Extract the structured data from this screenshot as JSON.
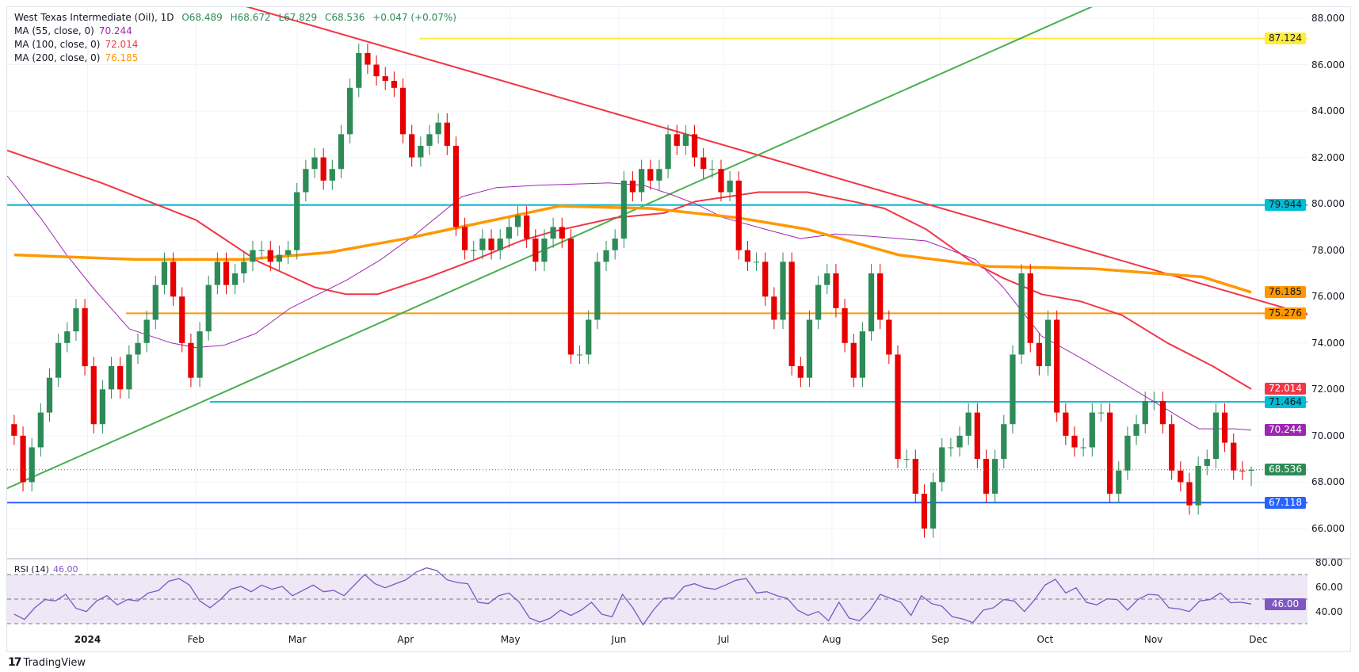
{
  "header": {
    "title": "West Texas Intermediate (Oil), 1D",
    "open": "O68.489",
    "high": "H68.672",
    "low": "L67.829",
    "close": "C68.536",
    "change": "+0.047 (+0.07%)"
  },
  "indicators": [
    {
      "label": "MA (55, close, 0)",
      "value": "70.244",
      "color": "#9c27b0"
    },
    {
      "label": "MA (100, close, 0)",
      "value": "72.014",
      "color": "#f23645"
    },
    {
      "label": "MA (200, close, 0)",
      "value": "76.185",
      "color": "#ff9800"
    }
  ],
  "rsi_legend": {
    "label": "RSI (14)",
    "value": "46.00"
  },
  "price_axis": [
    "88.000",
    "86.000",
    "84.000",
    "82.000",
    "80.000",
    "78.000",
    "76.000",
    "74.000",
    "72.000",
    "70.000",
    "68.000",
    "66.000"
  ],
  "rsi_axis": [
    "80.00",
    "60.00",
    "40.00"
  ],
  "price_tags": [
    {
      "value": "87.124",
      "bg": "#ffeb3b",
      "fg": "#131722"
    },
    {
      "value": "79.944",
      "bg": "#00bcd4",
      "fg": "#131722"
    },
    {
      "value": "76.185",
      "bg": "#ff9800",
      "fg": "#131722"
    },
    {
      "value": "75.276",
      "bg": "#ff9800",
      "fg": "#131722"
    },
    {
      "value": "72.014",
      "bg": "#f23645",
      "fg": "#ffffff"
    },
    {
      "value": "71.464",
      "bg": "#00bcd4",
      "fg": "#131722"
    },
    {
      "value": "70.244",
      "bg": "#9c27b0",
      "fg": "#ffffff"
    },
    {
      "value": "68.536",
      "bg": "#2e8b57",
      "fg": "#ffffff"
    },
    {
      "value": "67.118",
      "bg": "#2962ff",
      "fg": "#ffffff"
    }
  ],
  "rsi_tag": {
    "value": "46.00",
    "bg": "#7e57c2",
    "fg": "#ffffff"
  },
  "time_axis": [
    {
      "label": "2024",
      "date": "2024-01-01"
    },
    {
      "label": "Feb",
      "date": "2024-02-01"
    },
    {
      "label": "Mar",
      "date": "2024-03-01"
    },
    {
      "label": "Apr",
      "date": "2024-04-01"
    },
    {
      "label": "May",
      "date": "2024-05-01"
    },
    {
      "label": "Jun",
      "date": "2024-06-01"
    },
    {
      "label": "Jul",
      "date": "2024-07-01"
    },
    {
      "label": "Aug",
      "date": "2024-08-01"
    },
    {
      "label": "Sep",
      "date": "2024-09-01"
    },
    {
      "label": "Oct",
      "date": "2024-10-01"
    },
    {
      "label": "Nov",
      "date": "2024-11-01"
    },
    {
      "label": "Dec",
      "date": "2024-12-01"
    }
  ],
  "branding": "TradingView",
  "colors": {
    "up": "#2e8b57",
    "down": "#e60000",
    "grid": "#f0f3fa",
    "rsi": "#7e57c2",
    "rsi_band": "#ede7f6"
  },
  "chart_data": {
    "type": "candlestick",
    "symbol": "West Texas Intermediate (Oil)",
    "interval": "1D",
    "start_date": "2023-12-11",
    "end_date": "2024-11-29",
    "ylim": [
      65.5,
      88.5
    ],
    "first_open": 70.5,
    "closes": [
      70.0,
      68.0,
      69.5,
      71,
      72.5,
      74,
      74.5,
      75.5,
      73,
      70.5,
      72,
      73,
      72,
      73.5,
      74,
      75,
      76.5,
      77.5,
      76,
      74,
      72.5,
      74.5,
      76.5,
      77.5,
      76.5,
      77,
      77.5,
      78,
      78,
      77.5,
      77.8,
      78,
      80.5,
      81.5,
      82,
      81,
      81.5,
      83,
      85,
      86.5,
      86,
      85.5,
      85.3,
      85,
      83,
      82,
      82.5,
      83,
      83.5,
      82.5,
      79,
      78,
      78,
      78.5,
      78,
      78.5,
      79,
      79.5,
      78.5,
      77.5,
      78.5,
      79,
      78.5,
      73.5,
      73.5,
      75,
      77.5,
      78,
      78.5,
      81,
      80.5,
      81.5,
      81,
      81.5,
      83,
      82.5,
      83,
      82,
      81.5,
      81.5,
      80.5,
      81,
      78,
      77.5,
      77.5,
      76,
      75,
      77.5,
      73,
      72.5,
      75,
      76.5,
      77,
      75.5,
      74,
      72.5,
      74.5,
      77,
      75,
      73.5,
      69,
      69,
      67.5,
      66,
      68,
      69.5,
      69.5,
      70,
      71,
      69,
      67.5,
      69,
      70.5,
      73.5,
      77,
      74,
      73,
      75,
      71,
      70,
      69.5,
      69.5,
      71,
      71,
      67.5,
      68.5,
      70,
      70.5,
      71.5,
      71.5,
      70.5,
      68.5,
      68,
      67,
      68.7,
      69,
      71,
      69.7,
      68.5,
      68.489,
      68.536
    ],
    "last": {
      "open": 68.489,
      "high": 68.672,
      "low": 67.829,
      "close": 68.536
    },
    "moving_averages": [
      {
        "name": "MA (55, close, 0)",
        "color": "#9c27b0",
        "width": 1,
        "points": [
          [
            "2023-12-09",
            81.2
          ],
          [
            "2023-12-19",
            79.3
          ],
          [
            "2023-12-26",
            77.8
          ],
          [
            "2024-01-03",
            76.3
          ],
          [
            "2024-01-13",
            74.6
          ],
          [
            "2024-01-25",
            74.0
          ],
          [
            "2024-02-01",
            73.8
          ],
          [
            "2024-02-09",
            73.9
          ],
          [
            "2024-02-18",
            74.4
          ],
          [
            "2024-02-28",
            75.5
          ],
          [
            "2024-03-15",
            76.7
          ],
          [
            "2024-03-25",
            77.6
          ],
          [
            "2024-04-04",
            78.7
          ],
          [
            "2024-04-17",
            80.3
          ],
          [
            "2024-04-27",
            80.7
          ],
          [
            "2024-05-09",
            80.8
          ],
          [
            "2024-05-29",
            80.9
          ],
          [
            "2024-06-08",
            80.8
          ],
          [
            "2024-06-16",
            80.4
          ],
          [
            "2024-06-23",
            80.0
          ],
          [
            "2024-07-01",
            79.4
          ],
          [
            "2024-07-13",
            78.9
          ],
          [
            "2024-07-23",
            78.5
          ],
          [
            "2024-08-02",
            78.7
          ],
          [
            "2024-08-12",
            78.6
          ],
          [
            "2024-08-28",
            78.4
          ],
          [
            "2024-09-11",
            77.6
          ],
          [
            "2024-09-19",
            76.4
          ],
          [
            "2024-09-30",
            74.3
          ],
          [
            "2024-10-13",
            73.2
          ],
          [
            "2024-10-23",
            72.3
          ],
          [
            "2024-11-03",
            71.3
          ],
          [
            "2024-11-14",
            70.3
          ],
          [
            "2024-11-24",
            70.3
          ],
          [
            "2024-11-29",
            70.244
          ]
        ]
      },
      {
        "name": "MA (100, close, 0)",
        "color": "#f23645",
        "width": 2,
        "points": [
          [
            "2023-12-09",
            82.3
          ],
          [
            "2024-01-05",
            80.9
          ],
          [
            "2024-02-01",
            79.3
          ],
          [
            "2024-02-19",
            77.5
          ],
          [
            "2024-03-06",
            76.4
          ],
          [
            "2024-03-15",
            76.1
          ],
          [
            "2024-03-24",
            76.1
          ],
          [
            "2024-04-07",
            76.8
          ],
          [
            "2024-04-21",
            77.6
          ],
          [
            "2024-05-04",
            78.4
          ],
          [
            "2024-05-13",
            78.8
          ],
          [
            "2024-05-31",
            79.4
          ],
          [
            "2024-06-14",
            79.6
          ],
          [
            "2024-06-23",
            80.1
          ],
          [
            "2024-07-11",
            80.5
          ],
          [
            "2024-07-25",
            80.5
          ],
          [
            "2024-08-07",
            80.1
          ],
          [
            "2024-08-16",
            79.8
          ],
          [
            "2024-08-28",
            78.9
          ],
          [
            "2024-09-10",
            77.5
          ],
          [
            "2024-09-19",
            76.8
          ],
          [
            "2024-09-30",
            76.1
          ],
          [
            "2024-10-11",
            75.8
          ],
          [
            "2024-10-23",
            75.2
          ],
          [
            "2024-11-05",
            74.0
          ],
          [
            "2024-11-18",
            73.0
          ],
          [
            "2024-11-29",
            72.014
          ]
        ]
      },
      {
        "name": "MA (200, close, 0)",
        "color": "#ff9800",
        "width": 3.5,
        "points": [
          [
            "2023-12-11",
            77.8
          ],
          [
            "2024-01-15",
            77.6
          ],
          [
            "2024-02-15",
            77.6
          ],
          [
            "2024-03-10",
            77.9
          ],
          [
            "2024-04-01",
            78.5
          ],
          [
            "2024-04-20",
            79.1
          ],
          [
            "2024-05-15",
            79.9
          ],
          [
            "2024-06-10",
            79.8
          ],
          [
            "2024-07-05",
            79.4
          ],
          [
            "2024-07-25",
            78.9
          ],
          [
            "2024-08-20",
            77.8
          ],
          [
            "2024-09-15",
            77.3
          ],
          [
            "2024-10-15",
            77.2
          ],
          [
            "2024-11-15",
            76.85
          ],
          [
            "2024-11-29",
            76.185
          ]
        ]
      }
    ],
    "horizontal_levels": [
      {
        "value": 87.124,
        "color": "#ffeb3b",
        "from": "2024-04-05"
      },
      {
        "value": 79.944,
        "color": "#00bcd4",
        "from": "2023-12-09"
      },
      {
        "value": 75.276,
        "color": "#ff9800",
        "from": "2024-01-12"
      },
      {
        "value": 71.464,
        "color": "#00bcd4",
        "from": "2024-02-05"
      },
      {
        "value": 67.118,
        "color": "#2962ff",
        "from": "2023-12-09"
      }
    ],
    "current_price": 68.536,
    "trendlines": [
      {
        "color": "#f23645",
        "p1": [
          "2024-04-15",
          85.9
        ],
        "p2": [
          "2024-12-01",
          75.84
        ],
        "extend_right": true
      },
      {
        "color": "#4caf50",
        "p1": [
          "2023-12-13",
          68.0
        ],
        "p2": [
          "2024-09-25",
          87.2
        ],
        "extend_right": true
      }
    ],
    "rsi": {
      "period": 14,
      "overbought": 70,
      "middle": 50,
      "oversold": 30,
      "values": [
        37.7,
        33.4,
        43,
        49.6,
        48.5,
        53.9,
        42.5,
        39.9,
        48.5,
        52.8,
        45.3,
        49.6,
        48.5,
        55,
        57,
        64.6,
        66.7,
        61.4,
        48.5,
        43,
        49.6,
        58,
        60.3,
        56,
        61.4,
        58,
        60.3,
        52.8,
        57,
        61.4,
        56,
        57,
        52.8,
        61.4,
        70,
        62.5,
        59.2,
        62.5,
        65.7,
        72,
        75.4,
        73.2,
        65.7,
        63.5,
        62.5,
        47.4,
        46.3,
        52.8,
        55,
        47.4,
        34.5,
        31.3,
        34.5,
        41,
        36.7,
        41,
        47.4,
        37.7,
        35.6,
        53.9,
        43,
        29.1,
        41,
        50.6,
        51,
        60.3,
        62.5,
        59.2,
        58,
        61.4,
        65.3,
        66.8,
        55,
        56,
        52.8,
        50.6,
        41,
        36.7,
        39.9,
        32.4,
        47.4,
        34.5,
        32.4,
        41,
        53.9,
        50.6,
        47.4,
        36.7,
        52.8,
        46.3,
        44.2,
        35.6,
        33.9,
        30.9,
        41,
        43,
        49.6,
        48.5,
        39.9,
        49.6,
        61.4,
        66.1,
        55,
        59.2,
        47.4,
        45.3,
        50.2,
        49.6,
        41,
        49.6,
        53.9,
        53.2,
        43,
        42,
        39.9,
        48.5,
        49.6,
        55,
        47,
        47.4,
        46
      ]
    }
  }
}
